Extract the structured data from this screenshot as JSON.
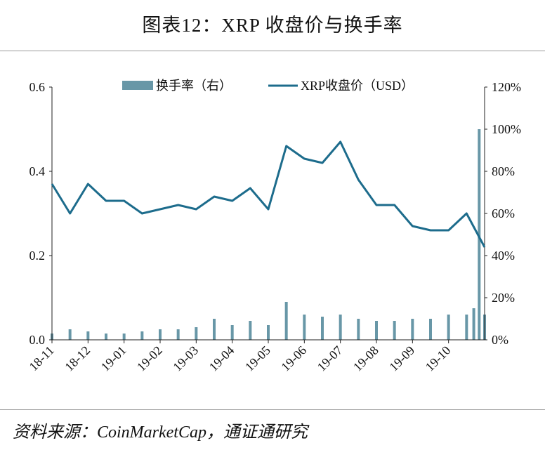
{
  "title": "图表12：XRP 收盘价与换手率",
  "source": "资料来源：CoinMarketCap，通证通研究",
  "colors": {
    "price_line": "#1d6c8c",
    "turnover_bar": "#6897a7",
    "axis": "#222222"
  },
  "chart_data": {
    "type": "bar+line",
    "categories": [
      "18-11",
      "18-12",
      "19-01",
      "19-02",
      "19-03",
      "19-04",
      "19-05",
      "19-06",
      "19-07",
      "19-08",
      "19-09",
      "19-10"
    ],
    "y_left": {
      "lim": [
        0,
        0.6
      ],
      "ticks": [
        "0.0",
        "0.2",
        "0.4",
        "0.6"
      ]
    },
    "y_right": {
      "lim": [
        0,
        120
      ],
      "ticks": [
        "0%",
        "20%",
        "40%",
        "60%",
        "80%",
        "100%",
        "120%"
      ]
    },
    "legend": {
      "placement": "top",
      "bar_label": "换手率（右）",
      "line_label": "XRP收盘价（USD）"
    },
    "price_series": {
      "name": "XRP收盘价（USD）",
      "axis": "left",
      "x": [
        0,
        0.5,
        1,
        1.5,
        2,
        2.5,
        3,
        3.5,
        4,
        4.5,
        5,
        5.5,
        6,
        6.5,
        7,
        7.5,
        8,
        8.5,
        9,
        9.5,
        10,
        10.5,
        11,
        11.5,
        12
      ],
      "values": [
        0.37,
        0.3,
        0.37,
        0.33,
        0.33,
        0.3,
        0.31,
        0.32,
        0.31,
        0.34,
        0.33,
        0.36,
        0.31,
        0.46,
        0.43,
        0.42,
        0.47,
        0.38,
        0.32,
        0.32,
        0.27,
        0.26,
        0.26,
        0.3,
        0.22
      ]
    },
    "turnover_series": {
      "name": "换手率（右）",
      "axis": "right",
      "x": [
        0,
        0.5,
        1,
        1.5,
        2,
        2.5,
        3,
        3.5,
        4,
        4.5,
        5,
        5.5,
        6,
        6.5,
        7,
        7.5,
        8,
        8.5,
        9,
        9.5,
        10,
        10.5,
        11,
        11.5,
        11.7,
        11.85,
        12
      ],
      "values": [
        3,
        5,
        4,
        3,
        3,
        4,
        5,
        5,
        6,
        10,
        7,
        9,
        7,
        18,
        12,
        11,
        12,
        10,
        9,
        9,
        10,
        10,
        12,
        12,
        15,
        100,
        12
      ]
    }
  }
}
